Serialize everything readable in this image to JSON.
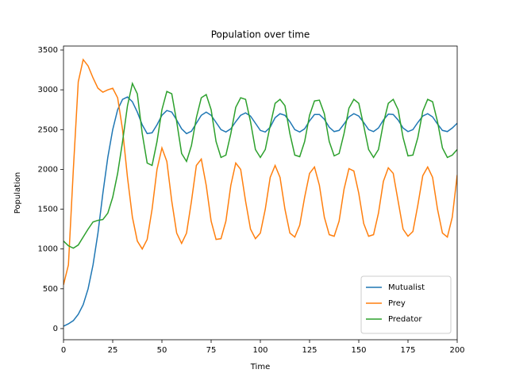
{
  "chart_data": {
    "type": "line",
    "title": "Population over time",
    "x_label": "Time",
    "y_label": "Population",
    "x": [
      0,
      2.5,
      5,
      7.5,
      10,
      12.5,
      15,
      17.5,
      20,
      22.5,
      25,
      27.5,
      30,
      32.5,
      35,
      37.5,
      40,
      42.5,
      45,
      47.5,
      50,
      52.5,
      55,
      57.5,
      60,
      62.5,
      65,
      67.5,
      70,
      72.5,
      75,
      77.5,
      80,
      82.5,
      85,
      87.5,
      90,
      92.5,
      95,
      97.5,
      100,
      102.5,
      105,
      107.5,
      110,
      112.5,
      115,
      117.5,
      120,
      122.5,
      125,
      127.5,
      130,
      132.5,
      135,
      137.5,
      140,
      142.5,
      145,
      147.5,
      150,
      152.5,
      155,
      157.5,
      160,
      162.5,
      165,
      167.5,
      170,
      172.5,
      175,
      177.5,
      180,
      182.5,
      185,
      187.5,
      190,
      192.5,
      195,
      197.5,
      200
    ],
    "series": [
      {
        "name": "Mutualist",
        "color": "#1f77b4",
        "values": [
          30,
          60,
          100,
          180,
          300,
          500,
          800,
          1200,
          1700,
          2150,
          2500,
          2750,
          2880,
          2910,
          2850,
          2720,
          2560,
          2450,
          2460,
          2560,
          2680,
          2740,
          2720,
          2620,
          2510,
          2450,
          2480,
          2580,
          2680,
          2720,
          2680,
          2590,
          2500,
          2470,
          2510,
          2600,
          2680,
          2710,
          2670,
          2580,
          2490,
          2470,
          2530,
          2650,
          2700,
          2680,
          2600,
          2500,
          2470,
          2510,
          2610,
          2690,
          2690,
          2630,
          2530,
          2475,
          2490,
          2570,
          2660,
          2700,
          2670,
          2590,
          2500,
          2475,
          2520,
          2620,
          2695,
          2690,
          2620,
          2520,
          2475,
          2500,
          2590,
          2670,
          2700,
          2660,
          2570,
          2490,
          2475,
          2520,
          2580
        ]
      },
      {
        "name": "Prey",
        "color": "#ff7f0e",
        "values": [
          550,
          800,
          2000,
          3100,
          3380,
          3300,
          3150,
          3020,
          2970,
          3000,
          3020,
          2900,
          2500,
          1900,
          1400,
          1100,
          1000,
          1120,
          1500,
          2000,
          2270,
          2100,
          1600,
          1200,
          1070,
          1200,
          1600,
          2050,
          2130,
          1800,
          1350,
          1120,
          1130,
          1350,
          1800,
          2080,
          2000,
          1600,
          1250,
          1130,
          1200,
          1500,
          1900,
          2050,
          1900,
          1500,
          1200,
          1150,
          1300,
          1650,
          1950,
          2030,
          1800,
          1400,
          1180,
          1160,
          1350,
          1750,
          2010,
          1980,
          1700,
          1320,
          1160,
          1180,
          1450,
          1850,
          2020,
          1950,
          1600,
          1250,
          1160,
          1220,
          1550,
          1920,
          2030,
          1900,
          1500,
          1200,
          1150,
          1400,
          1930
        ]
      },
      {
        "name": "Predator",
        "color": "#2ca02c",
        "values": [
          1100,
          1040,
          1010,
          1050,
          1150,
          1250,
          1340,
          1360,
          1370,
          1450,
          1650,
          1950,
          2350,
          2800,
          3080,
          2950,
          2450,
          2080,
          2050,
          2350,
          2750,
          2980,
          2950,
          2600,
          2200,
          2100,
          2300,
          2650,
          2900,
          2940,
          2750,
          2350,
          2150,
          2180,
          2450,
          2780,
          2900,
          2880,
          2600,
          2250,
          2150,
          2250,
          2550,
          2830,
          2880,
          2800,
          2450,
          2180,
          2160,
          2350,
          2680,
          2860,
          2870,
          2700,
          2350,
          2170,
          2200,
          2450,
          2770,
          2880,
          2830,
          2550,
          2250,
          2150,
          2250,
          2580,
          2830,
          2880,
          2750,
          2400,
          2170,
          2180,
          2400,
          2730,
          2880,
          2850,
          2600,
          2270,
          2150,
          2180,
          2250
        ]
      }
    ],
    "xlim": [
      0,
      200
    ],
    "xticks": [
      0,
      25,
      50,
      75,
      100,
      125,
      150,
      175,
      200
    ],
    "ylim": [
      -140,
      3550
    ],
    "yticks": [
      0,
      500,
      1000,
      1500,
      2000,
      2500,
      3000,
      3500
    ],
    "legend": "lower right"
  }
}
